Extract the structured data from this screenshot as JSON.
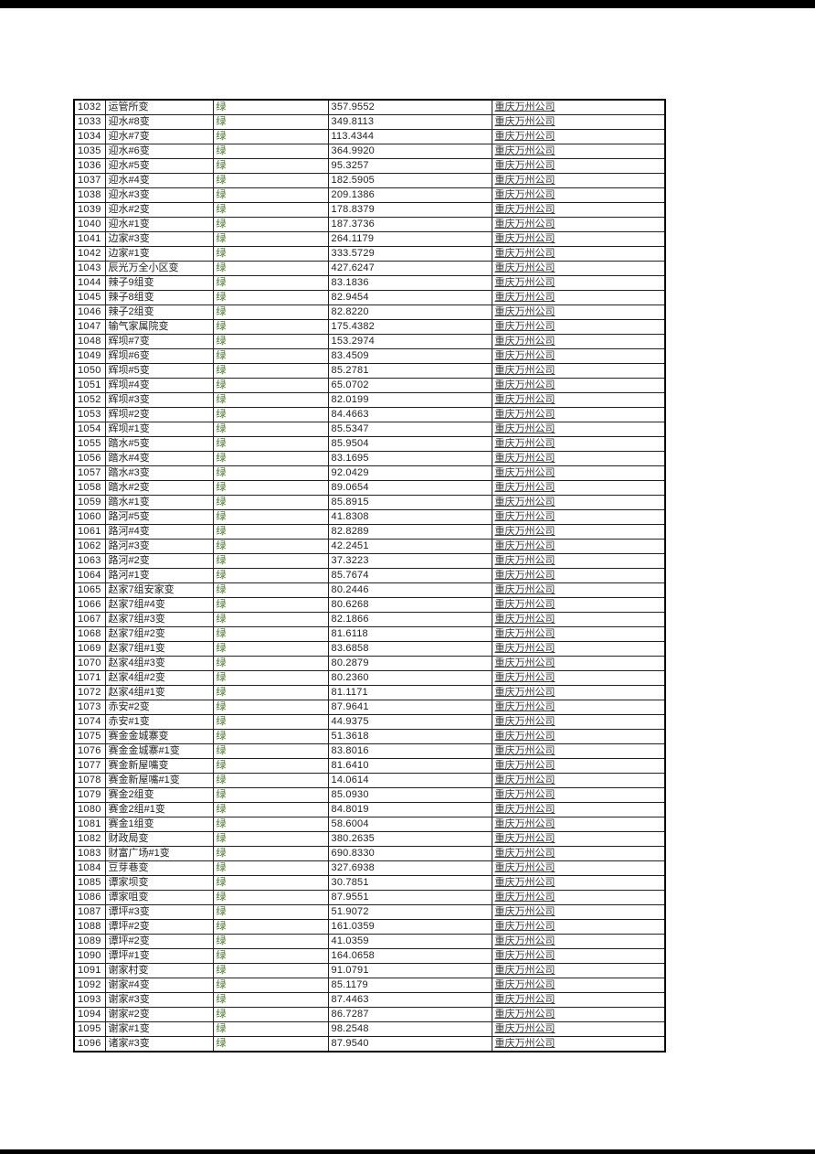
{
  "page": {
    "background_color": "#ffffff",
    "top_bar_color": "#000000",
    "bottom_bar_color": "#000000"
  },
  "table": {
    "status_color": "#3f7b20",
    "company_text_color": "#3a3a3a",
    "columns": [
      "seq",
      "name",
      "status",
      "value",
      "company"
    ],
    "rows": [
      [
        "1032",
        "运管所变",
        "绿",
        "357.9552",
        "重庆万州公司"
      ],
      [
        "1033",
        "迎水#8变",
        "绿",
        "349.8113",
        "重庆万州公司"
      ],
      [
        "1034",
        "迎水#7变",
        "绿",
        "113.4344",
        "重庆万州公司"
      ],
      [
        "1035",
        "迎水#6变",
        "绿",
        "364.9920",
        "重庆万州公司"
      ],
      [
        "1036",
        "迎水#5变",
        "绿",
        "95.3257",
        "重庆万州公司"
      ],
      [
        "1037",
        "迎水#4变",
        "绿",
        "182.5905",
        "重庆万州公司"
      ],
      [
        "1038",
        "迎水#3变",
        "绿",
        "209.1386",
        "重庆万州公司"
      ],
      [
        "1039",
        "迎水#2变",
        "绿",
        "178.8379",
        "重庆万州公司"
      ],
      [
        "1040",
        "迎水#1变",
        "绿",
        "187.3736",
        "重庆万州公司"
      ],
      [
        "1041",
        "边家#3变",
        "绿",
        "264.1179",
        "重庆万州公司"
      ],
      [
        "1042",
        "边家#1变",
        "绿",
        "333.5729",
        "重庆万州公司"
      ],
      [
        "1043",
        "辰光万全小区变",
        "绿",
        "427.6247",
        "重庆万州公司"
      ],
      [
        "1044",
        "辣子9组变",
        "绿",
        "83.1836",
        "重庆万州公司"
      ],
      [
        "1045",
        "辣子8组变",
        "绿",
        "82.9454",
        "重庆万州公司"
      ],
      [
        "1046",
        "辣子2组变",
        "绿",
        "82.8220",
        "重庆万州公司"
      ],
      [
        "1047",
        "输气家属院变",
        "绿",
        "175.4382",
        "重庆万州公司"
      ],
      [
        "1048",
        "辉坝#7变",
        "绿",
        "153.2974",
        "重庆万州公司"
      ],
      [
        "1049",
        "辉坝#6变",
        "绿",
        "83.4509",
        "重庆万州公司"
      ],
      [
        "1050",
        "辉坝#5变",
        "绿",
        "85.2781",
        "重庆万州公司"
      ],
      [
        "1051",
        "辉坝#4变",
        "绿",
        "65.0702",
        "重庆万州公司"
      ],
      [
        "1052",
        "辉坝#3变",
        "绿",
        "82.0199",
        "重庆万州公司"
      ],
      [
        "1053",
        "辉坝#2变",
        "绿",
        "84.4663",
        "重庆万州公司"
      ],
      [
        "1054",
        "辉坝#1变",
        "绿",
        "85.5347",
        "重庆万州公司"
      ],
      [
        "1055",
        "踏水#5变",
        "绿",
        "85.9504",
        "重庆万州公司"
      ],
      [
        "1056",
        "踏水#4变",
        "绿",
        "83.1695",
        "重庆万州公司"
      ],
      [
        "1057",
        "踏水#3变",
        "绿",
        "92.0429",
        "重庆万州公司"
      ],
      [
        "1058",
        "踏水#2变",
        "绿",
        "89.0654",
        "重庆万州公司"
      ],
      [
        "1059",
        "踏水#1变",
        "绿",
        "85.8915",
        "重庆万州公司"
      ],
      [
        "1060",
        "路河#5变",
        "绿",
        "41.8308",
        "重庆万州公司"
      ],
      [
        "1061",
        "路河#4变",
        "绿",
        "82.8289",
        "重庆万州公司"
      ],
      [
        "1062",
        "路河#3变",
        "绿",
        "42.2451",
        "重庆万州公司"
      ],
      [
        "1063",
        "路河#2变",
        "绿",
        "37.3223",
        "重庆万州公司"
      ],
      [
        "1064",
        "路河#1变",
        "绿",
        "85.7674",
        "重庆万州公司"
      ],
      [
        "1065",
        "赵家7组安家变",
        "绿",
        "80.2446",
        "重庆万州公司"
      ],
      [
        "1066",
        "赵家7组#4变",
        "绿",
        "80.6268",
        "重庆万州公司"
      ],
      [
        "1067",
        "赵家7组#3变",
        "绿",
        "82.1866",
        "重庆万州公司"
      ],
      [
        "1068",
        "赵家7组#2变",
        "绿",
        "81.6118",
        "重庆万州公司"
      ],
      [
        "1069",
        "赵家7组#1变",
        "绿",
        "83.6858",
        "重庆万州公司"
      ],
      [
        "1070",
        "赵家4组#3变",
        "绿",
        "80.2879",
        "重庆万州公司"
      ],
      [
        "1071",
        "赵家4组#2变",
        "绿",
        "80.2360",
        "重庆万州公司"
      ],
      [
        "1072",
        "赵家4组#1变",
        "绿",
        "81.1171",
        "重庆万州公司"
      ],
      [
        "1073",
        "赤安#2变",
        "绿",
        "87.9641",
        "重庆万州公司"
      ],
      [
        "1074",
        "赤安#1变",
        "绿",
        "44.9375",
        "重庆万州公司"
      ],
      [
        "1075",
        "赛金金城寨变",
        "绿",
        "51.3618",
        "重庆万州公司"
      ],
      [
        "1076",
        "赛金金城寨#1变",
        "绿",
        "83.8016",
        "重庆万州公司"
      ],
      [
        "1077",
        "赛金新屋嘴变",
        "绿",
        "81.6410",
        "重庆万州公司"
      ],
      [
        "1078",
        "赛金新屋嘴#1变",
        "绿",
        "14.0614",
        "重庆万州公司"
      ],
      [
        "1079",
        "赛金2组变",
        "绿",
        "85.0930",
        "重庆万州公司"
      ],
      [
        "1080",
        "赛金2组#1变",
        "绿",
        "84.8019",
        "重庆万州公司"
      ],
      [
        "1081",
        "赛金1组变",
        "绿",
        "58.6004",
        "重庆万州公司"
      ],
      [
        "1082",
        "财政局变",
        "绿",
        "380.2635",
        "重庆万州公司"
      ],
      [
        "1083",
        "财富广场#1变",
        "绿",
        "690.8330",
        "重庆万州公司"
      ],
      [
        "1084",
        "豆芽巷变",
        "绿",
        "327.6938",
        "重庆万州公司"
      ],
      [
        "1085",
        "谭家坝变",
        "绿",
        "30.7851",
        "重庆万州公司"
      ],
      [
        "1086",
        "谭家咀变",
        "绿",
        "87.9551",
        "重庆万州公司"
      ],
      [
        "1087",
        "谭坪#3变",
        "绿",
        "51.9072",
        "重庆万州公司"
      ],
      [
        "1088",
        "谭坪#2变",
        "绿",
        "161.0359",
        "重庆万州公司"
      ],
      [
        "1089",
        "谭坪#2变",
        "绿",
        "41.0359",
        "重庆万州公司"
      ],
      [
        "1090",
        "谭坪#1变",
        "绿",
        "164.0658",
        "重庆万州公司"
      ],
      [
        "1091",
        "谢家村变",
        "绿",
        "91.0791",
        "重庆万州公司"
      ],
      [
        "1092",
        "谢家#4变",
        "绿",
        "85.1179",
        "重庆万州公司"
      ],
      [
        "1093",
        "谢家#3变",
        "绿",
        "87.4463",
        "重庆万州公司"
      ],
      [
        "1094",
        "谢家#2变",
        "绿",
        "86.7287",
        "重庆万州公司"
      ],
      [
        "1095",
        "谢家#1变",
        "绿",
        "98.2548",
        "重庆万州公司"
      ],
      [
        "1096",
        "诸家#3变",
        "绿",
        "87.9540",
        "重庆万州公司"
      ]
    ]
  }
}
